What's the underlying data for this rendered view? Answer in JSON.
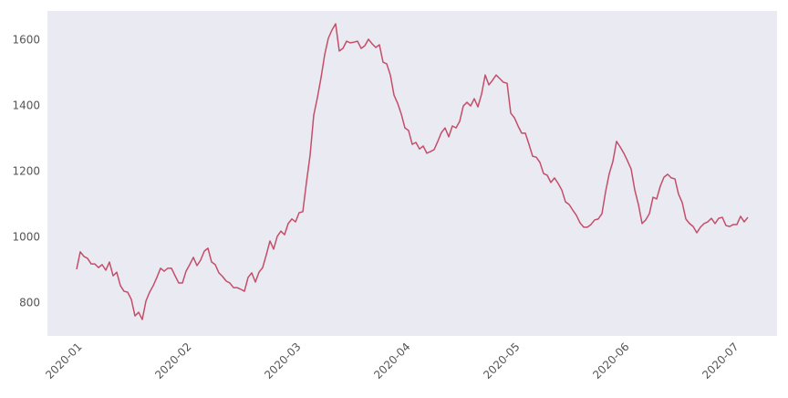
{
  "chart_data": {
    "type": "line",
    "color": "#c44e69",
    "background": "#eaeaf2",
    "grid": false,
    "values": [
      903,
      956,
      942,
      936,
      919,
      919,
      908,
      917,
      900,
      925,
      883,
      894,
      853,
      836,
      833,
      811,
      761,
      772,
      750,
      806,
      833,
      853,
      878,
      906,
      897,
      906,
      906,
      883,
      861,
      861,
      897,
      917,
      939,
      914,
      931,
      958,
      967,
      925,
      917,
      892,
      881,
      867,
      861,
      847,
      847,
      842,
      836,
      878,
      892,
      864,
      894,
      908,
      947,
      989,
      964,
      1003,
      1019,
      1008,
      1042,
      1056,
      1047,
      1075,
      1078,
      1167,
      1250,
      1372,
      1425,
      1486,
      1556,
      1606,
      1631,
      1650,
      1567,
      1575,
      1597,
      1592,
      1594,
      1597,
      1575,
      1583,
      1603,
      1589,
      1578,
      1586,
      1533,
      1528,
      1494,
      1433,
      1408,
      1375,
      1333,
      1325,
      1283,
      1289,
      1269,
      1278,
      1256,
      1261,
      1267,
      1292,
      1319,
      1333,
      1306,
      1339,
      1333,
      1353,
      1400,
      1411,
      1400,
      1422,
      1397,
      1436,
      1494,
      1464,
      1478,
      1494,
      1483,
      1472,
      1469,
      1378,
      1364,
      1339,
      1317,
      1317,
      1283,
      1247,
      1244,
      1228,
      1194,
      1189,
      1167,
      1181,
      1164,
      1144,
      1108,
      1100,
      1083,
      1067,
      1044,
      1031,
      1031,
      1039,
      1053,
      1056,
      1072,
      1139,
      1194,
      1231,
      1292,
      1275,
      1256,
      1233,
      1208,
      1144,
      1100,
      1042,
      1053,
      1072,
      1122,
      1117,
      1156,
      1183,
      1192,
      1181,
      1178,
      1131,
      1106,
      1056,
      1042,
      1033,
      1014,
      1031,
      1042,
      1047,
      1058,
      1042,
      1058,
      1061,
      1036,
      1033,
      1039,
      1039,
      1064,
      1047,
      1061
    ],
    "xlim": [
      -8,
      192
    ],
    "xticks": [
      {
        "value": 1,
        "label": "2020-01"
      },
      {
        "value": 31,
        "label": "2020-02"
      },
      {
        "value": 61,
        "label": "2020-03"
      },
      {
        "value": 91,
        "label": "2020-04"
      },
      {
        "value": 121,
        "label": "2020-05"
      },
      {
        "value": 151,
        "label": "2020-06"
      },
      {
        "value": 181,
        "label": "2020-07"
      }
    ],
    "ylim": [
      700,
      1689
    ],
    "yticks": [
      800,
      1000,
      1200,
      1400,
      1600
    ]
  }
}
